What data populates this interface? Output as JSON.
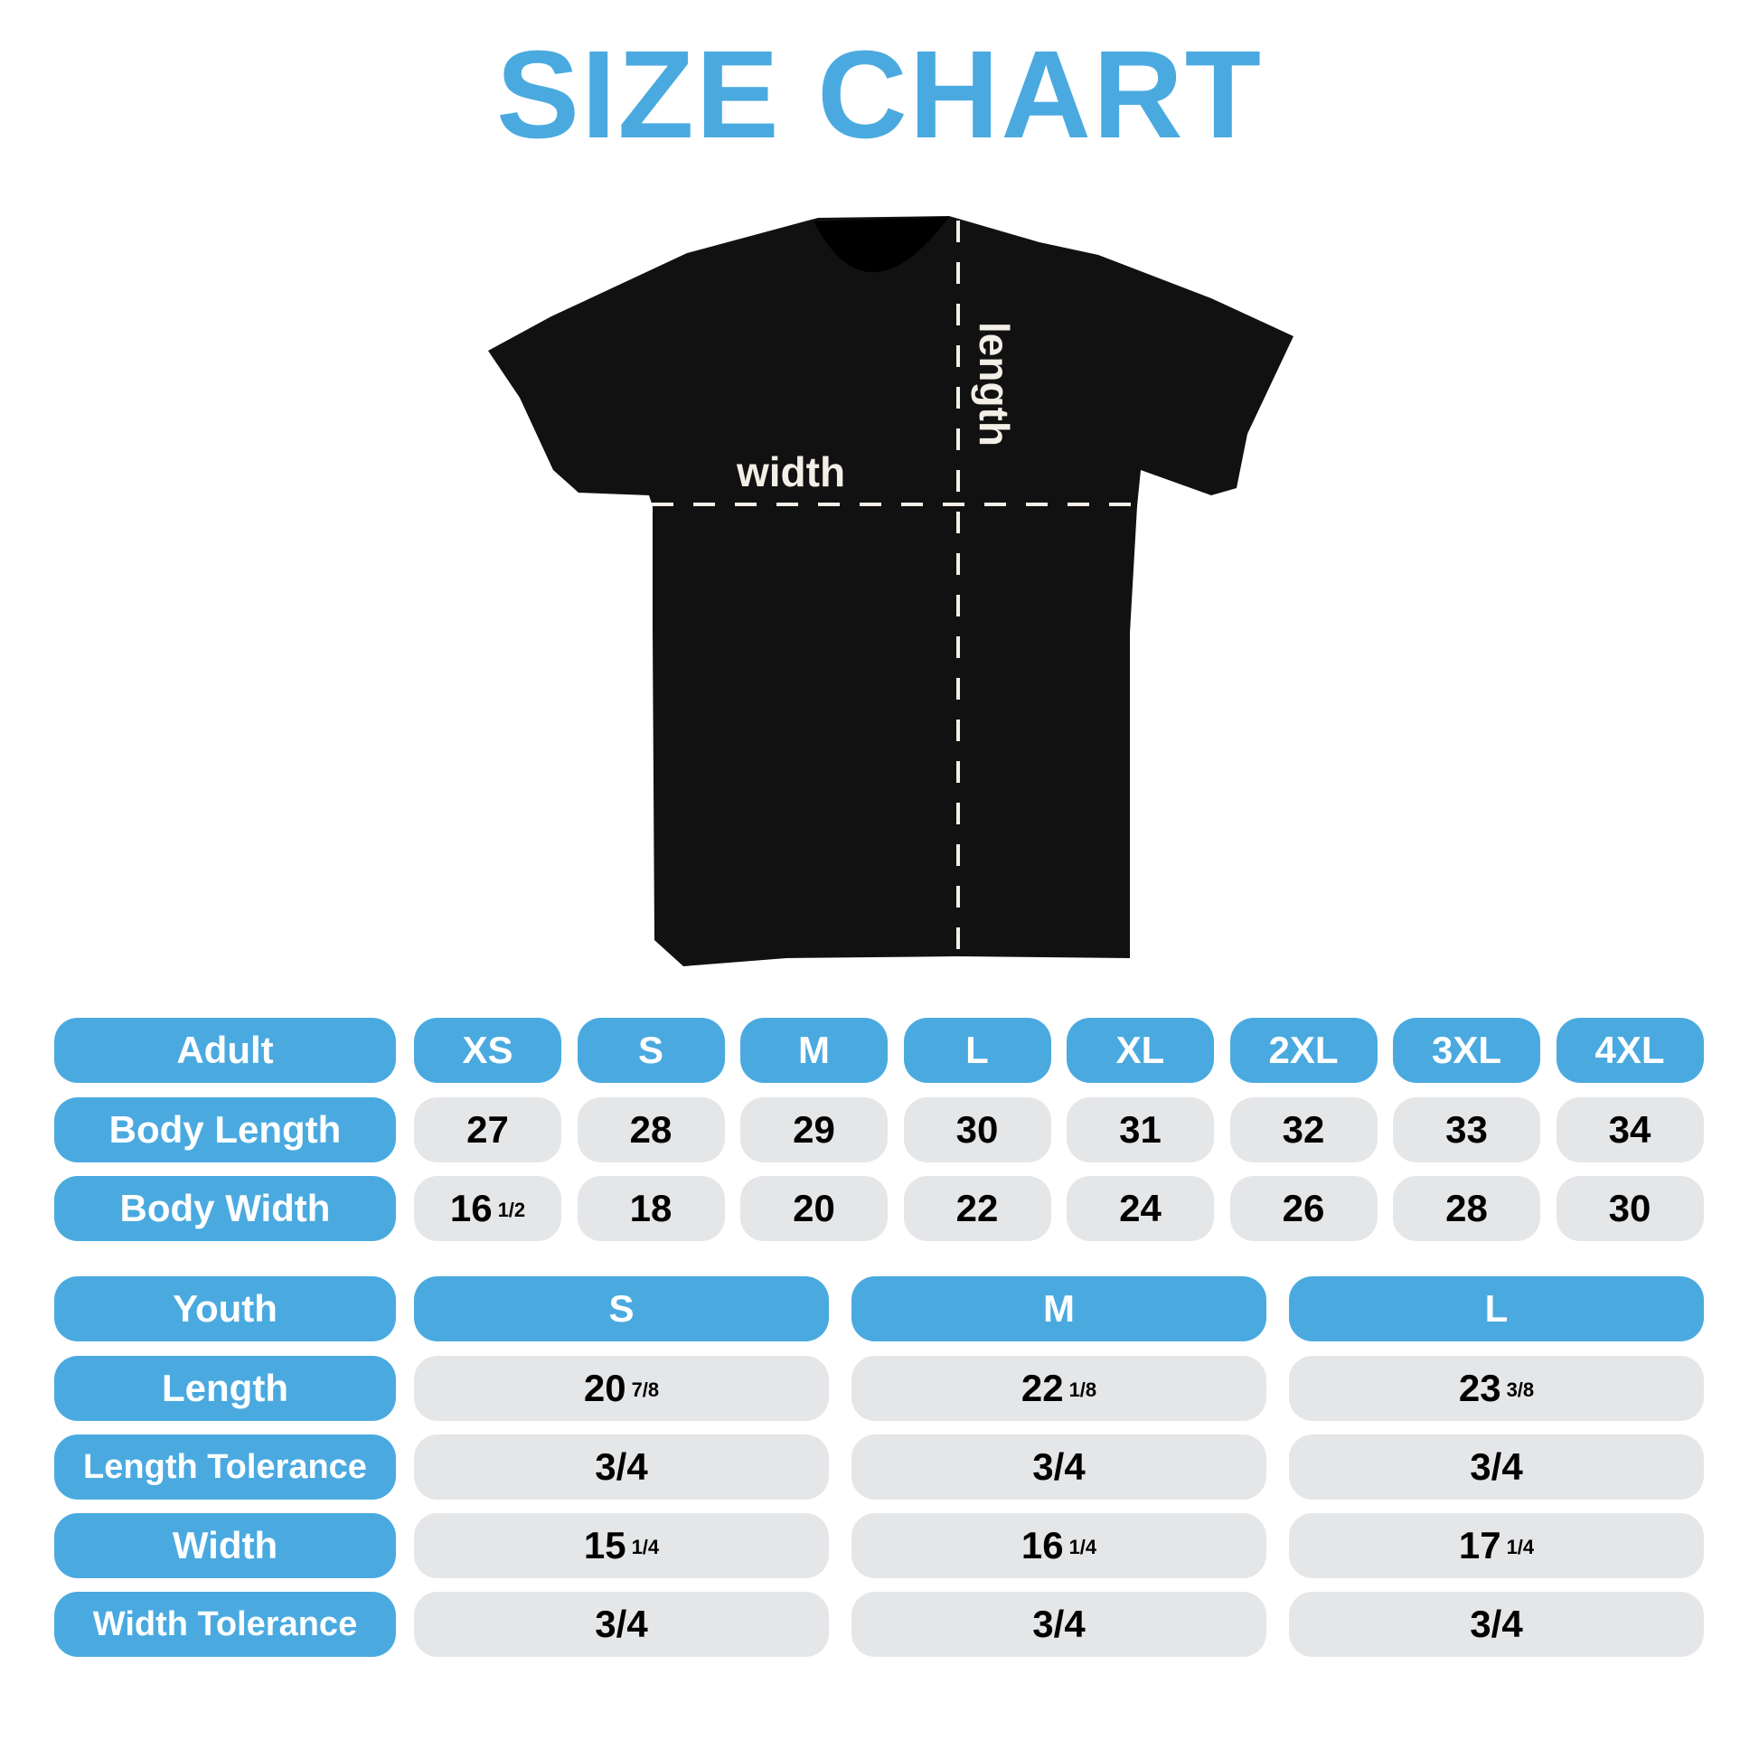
{
  "title": "SIZE CHART",
  "colors": {
    "accent": "#4aaae0",
    "cell": "#e5e6e8",
    "shirt": "#111111",
    "guide": "#f3efe6"
  },
  "shirt": {
    "width_label": "width",
    "length_label": "length"
  },
  "adult": {
    "header": "Adult",
    "sizes": [
      "XS",
      "S",
      "M",
      "L",
      "XL",
      "2XL",
      "3XL",
      "4XL"
    ],
    "rows": [
      {
        "label": "Body Length",
        "values": [
          {
            "v": "27"
          },
          {
            "v": "28"
          },
          {
            "v": "29"
          },
          {
            "v": "30"
          },
          {
            "v": "31"
          },
          {
            "v": "32"
          },
          {
            "v": "33"
          },
          {
            "v": "34"
          }
        ]
      },
      {
        "label": "Body Width",
        "values": [
          {
            "v": "16",
            "f": "1/2"
          },
          {
            "v": "18"
          },
          {
            "v": "20"
          },
          {
            "v": "22"
          },
          {
            "v": "24"
          },
          {
            "v": "26"
          },
          {
            "v": "28"
          },
          {
            "v": "30"
          }
        ]
      }
    ]
  },
  "youth": {
    "header": "Youth",
    "sizes": [
      "S",
      "M",
      "L"
    ],
    "rows": [
      {
        "label": "Length",
        "values": [
          {
            "v": "20",
            "f": "7/8"
          },
          {
            "v": "22",
            "f": "1/8"
          },
          {
            "v": "23",
            "f": "3/8"
          }
        ]
      },
      {
        "label": "Length Tolerance",
        "values": [
          {
            "v": "3/4"
          },
          {
            "v": "3/4"
          },
          {
            "v": "3/4"
          }
        ]
      },
      {
        "label": "Width",
        "values": [
          {
            "v": "15",
            "f": "1/4"
          },
          {
            "v": "16",
            "f": "1/4"
          },
          {
            "v": "17",
            "f": "1/4"
          }
        ]
      },
      {
        "label": "Width Tolerance",
        "values": [
          {
            "v": "3/4"
          },
          {
            "v": "3/4"
          },
          {
            "v": "3/4"
          }
        ]
      }
    ]
  }
}
